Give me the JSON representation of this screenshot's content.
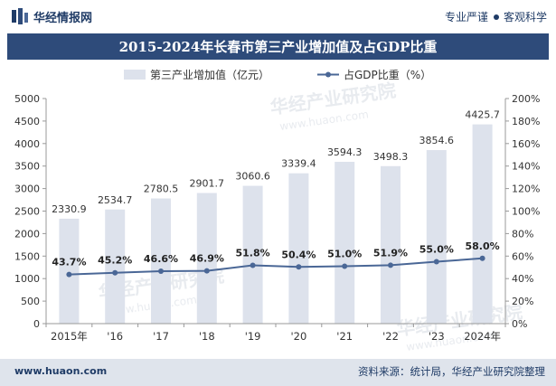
{
  "header": {
    "brand_name": "华经情报网",
    "slogan_left": "专业严谨",
    "slogan_right": "客观科学"
  },
  "footer": {
    "site": "www.huaon.com",
    "source": "资料来源：统计局，华经产业研究院整理"
  },
  "watermarks": [
    "华经产业研究院",
    "www.huaon.com"
  ],
  "colors": {
    "bar": "#dde2ec",
    "line": "#4a6796",
    "title_bg": "#2e4b7a",
    "footer_bg": "#dfe4ec"
  },
  "chart_data": {
    "type": "bar",
    "title": "2015-2024年长春市第三产业增加值及占GDP比重",
    "categories": [
      "2015年",
      "'16",
      "'17",
      "'18",
      "'19",
      "'20",
      "'21",
      "'22",
      "'23",
      "2024年"
    ],
    "series": [
      {
        "name": "第三产业增加值（亿元）",
        "type": "bar",
        "axis": "left",
        "values": [
          2330.9,
          2534.7,
          2780.5,
          2901.7,
          3060.6,
          3339.4,
          3594.3,
          3498.3,
          3854.6,
          4425.7
        ],
        "labels": [
          "2330.9",
          "2534.7",
          "2780.5",
          "2901.7",
          "3060.6",
          "3339.4",
          "3594.3",
          "3498.3",
          "3854.6",
          "4425.7"
        ]
      },
      {
        "name": "占GDP比重（%）",
        "type": "line",
        "axis": "right",
        "values": [
          43.7,
          45.2,
          46.6,
          46.9,
          51.8,
          50.4,
          51.0,
          51.9,
          55.0,
          58.0
        ],
        "labels": [
          "43.7%",
          "45.2%",
          "46.6%",
          "46.9%",
          "51.8%",
          "50.4%",
          "51.0%",
          "51.9%",
          "55.0%",
          "58.0%"
        ]
      }
    ],
    "y_left": {
      "range": [
        0,
        5000
      ],
      "ticks": [
        0,
        500,
        1000,
        1500,
        2000,
        2500,
        3000,
        3500,
        4000,
        4500,
        5000
      ],
      "tick_labels": [
        "0",
        "500",
        "1000",
        "1500",
        "2000",
        "2500",
        "3000",
        "3500",
        "4000",
        "4500",
        "5000"
      ]
    },
    "y_right": {
      "range": [
        0,
        200
      ],
      "ticks": [
        0,
        20,
        40,
        60,
        80,
        100,
        120,
        140,
        160,
        180,
        200
      ],
      "tick_labels": [
        "0%",
        "20%",
        "40%",
        "60%",
        "80%",
        "100%",
        "120%",
        "140%",
        "160%",
        "180%",
        "200%"
      ]
    },
    "legend_position": "top",
    "grid": false
  }
}
